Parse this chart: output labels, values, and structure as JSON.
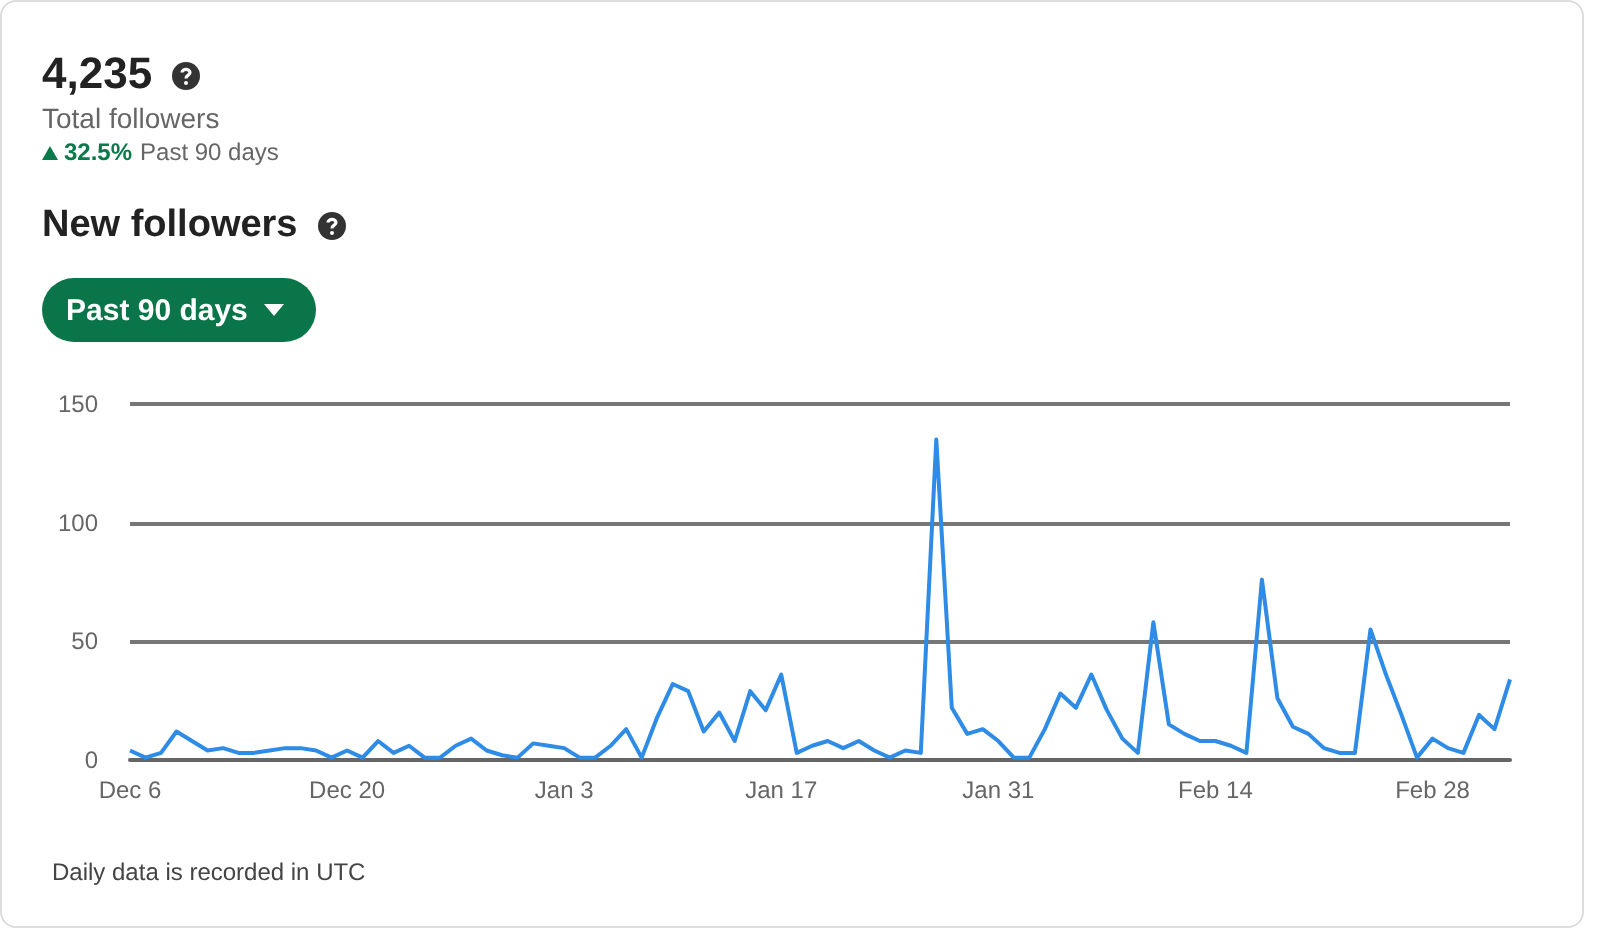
{
  "chart_data": {
    "type": "line",
    "title": "New followers",
    "annotations": [
      "4,235",
      "Total followers",
      "32.5%",
      "Past 90 days",
      "Past 90 days",
      "Daily data is recorded in UTC"
    ],
    "categories": [
      "Dec 6",
      null,
      null,
      null,
      null,
      null,
      null,
      null,
      null,
      null,
      null,
      null,
      null,
      null,
      "Dec 20",
      null,
      null,
      null,
      null,
      null,
      null,
      null,
      null,
      null,
      null,
      null,
      null,
      null,
      "Jan 3",
      null,
      null,
      null,
      null,
      null,
      null,
      null,
      null,
      null,
      null,
      null,
      null,
      null,
      "Jan 17",
      null,
      null,
      null,
      null,
      null,
      null,
      null,
      null,
      null,
      null,
      null,
      null,
      null,
      "Jan 31",
      null,
      null,
      null,
      null,
      null,
      null,
      null,
      null,
      null,
      null,
      null,
      null,
      null,
      "Feb 14",
      null,
      null,
      null,
      null,
      null,
      null,
      null,
      null,
      null,
      null,
      null,
      null,
      null,
      "Feb 28",
      null,
      null,
      null,
      null,
      null
    ],
    "values": [
      4,
      1,
      3,
      12,
      8,
      4,
      5,
      3,
      3,
      4,
      5,
      5,
      4,
      1,
      4,
      1,
      8,
      3,
      6,
      1,
      1,
      6,
      9,
      4,
      2,
      1,
      7,
      6,
      5,
      1,
      1,
      6,
      13,
      1,
      18,
      32,
      29,
      12,
      20,
      8,
      29,
      21,
      36,
      3,
      6,
      8,
      5,
      8,
      4,
      1,
      4,
      3,
      135,
      22,
      11,
      13,
      8,
      1,
      1,
      13,
      28,
      22,
      36,
      21,
      9,
      3,
      58,
      15,
      11,
      8,
      8,
      6,
      3,
      76,
      26,
      14,
      11,
      5,
      3,
      3,
      55,
      36,
      19,
      1,
      9,
      5,
      3,
      19,
      13,
      34
    ],
    "color": "#2e8be6",
    "ylim": [
      0,
      150
    ],
    "yticks": [
      0,
      50,
      100,
      150
    ],
    "grid": "y",
    "marker": "none",
    "line_style": "solid"
  }
}
